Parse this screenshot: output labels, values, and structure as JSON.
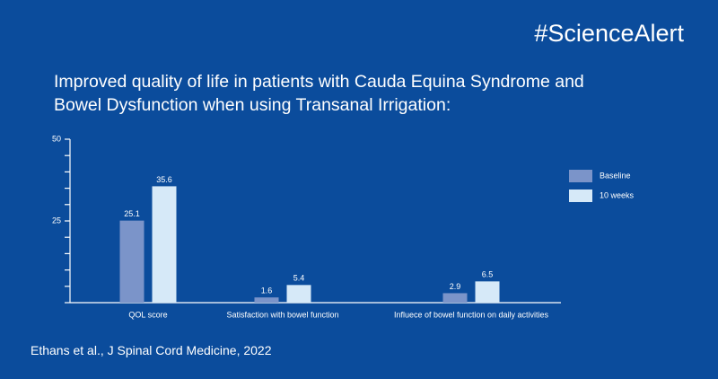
{
  "brand": "#ScienceAlert",
  "source": "Ethans et al., J Spinal Cord Medicine, 2022",
  "chart_data": {
    "type": "bar",
    "title": "Improved quality of life in patients with Cauda Equina Syndrome and Bowel Dysfunction when using Transanal Irrigation:",
    "categories": [
      "QOL score",
      "Satisfaction with bowel function",
      "Influece of bowel function on daily activities"
    ],
    "series": [
      {
        "name": "Baseline",
        "color": "#7b94c9",
        "values": [
          25.1,
          1.6,
          2.9
        ]
      },
      {
        "name": "10 weeks",
        "color": "#d6e9f8",
        "values": [
          35.6,
          5.4,
          6.5
        ]
      }
    ],
    "ylim": [
      0,
      50
    ],
    "yticks": [
      25,
      50
    ],
    "yminor_ticks": [
      0,
      5,
      10,
      15,
      20,
      25,
      30,
      35,
      40,
      45,
      50
    ],
    "legend": "right"
  }
}
